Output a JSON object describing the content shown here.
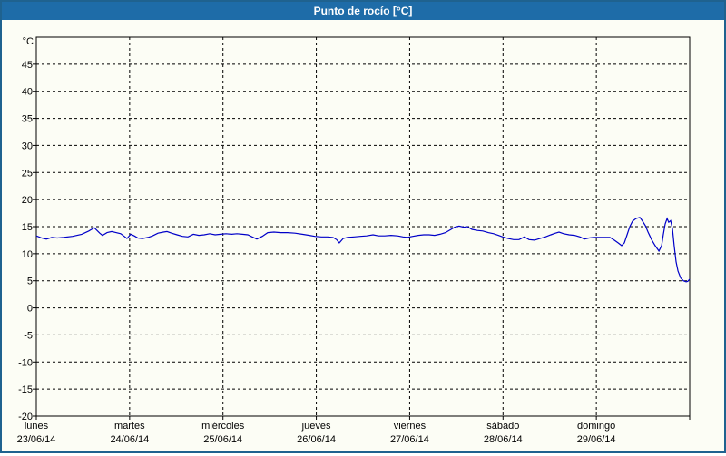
{
  "header": {
    "title": "Punto de rocío [°C]"
  },
  "colors": {
    "title_bar_bg": "#1E6CA8",
    "title_text": "#FFFFFF",
    "frame_border": "#1F628F",
    "page_bg": "#FCFDF5",
    "grid": "#000000",
    "series": "#0000C8"
  },
  "chart_data": {
    "type": "line",
    "title": "Punto de rocío [°C]",
    "xlabel": "",
    "ylabel": "°C",
    "y_unit_label": "°C",
    "ylim": [
      -20,
      50
    ],
    "y_ticks": [
      45,
      40,
      35,
      30,
      25,
      20,
      15,
      10,
      5,
      0,
      -5,
      -10,
      -15,
      -20
    ],
    "grid": "dashed",
    "legend_position": "none",
    "x_total_hours": 168,
    "x_days": [
      {
        "name": "lunes",
        "date": "23/06/14"
      },
      {
        "name": "martes",
        "date": "24/06/14"
      },
      {
        "name": "miércoles",
        "date": "25/06/14"
      },
      {
        "name": "jueves",
        "date": "26/06/14"
      },
      {
        "name": "viernes",
        "date": "27/06/14"
      },
      {
        "name": "sábado",
        "date": "28/06/14"
      },
      {
        "name": "domingo",
        "date": "29/06/14"
      }
    ],
    "series": [
      {
        "name": "Punto de rocío",
        "unit": "°C",
        "points": [
          [
            0,
            13.3
          ],
          [
            1.4,
            12.9
          ],
          [
            2.6,
            12.7
          ],
          [
            4,
            13
          ],
          [
            5.4,
            12.9
          ],
          [
            7,
            13
          ],
          [
            9.3,
            13.2
          ],
          [
            11.7,
            13.6
          ],
          [
            13.5,
            14.2
          ],
          [
            14.9,
            14.8
          ],
          [
            16.3,
            13.8
          ],
          [
            17,
            13.4
          ],
          [
            18.2,
            13.9
          ],
          [
            19.4,
            14.1
          ],
          [
            20.5,
            13.9
          ],
          [
            21.7,
            13.7
          ],
          [
            22.6,
            13.2
          ],
          [
            23.3,
            12.8
          ],
          [
            24.3,
            13.6
          ],
          [
            25.2,
            13.3
          ],
          [
            26.1,
            12.9
          ],
          [
            27.3,
            12.8
          ],
          [
            28.7,
            13
          ],
          [
            29.9,
            13.3
          ],
          [
            31.3,
            13.8
          ],
          [
            32.7,
            14
          ],
          [
            33.6,
            14.1
          ],
          [
            34.8,
            13.8
          ],
          [
            36.2,
            13.5
          ],
          [
            37.6,
            13.2
          ],
          [
            39,
            13.1
          ],
          [
            40.4,
            13.6
          ],
          [
            41.8,
            13.4
          ],
          [
            43.2,
            13.5
          ],
          [
            44.6,
            13.7
          ],
          [
            46,
            13.5
          ],
          [
            47.4,
            13.6
          ],
          [
            48.8,
            13.7
          ],
          [
            50.2,
            13.6
          ],
          [
            51.6,
            13.7
          ],
          [
            53,
            13.6
          ],
          [
            54.4,
            13.5
          ],
          [
            55.5,
            13.1
          ],
          [
            56.7,
            12.7
          ],
          [
            58.1,
            13.2
          ],
          [
            59.5,
            13.9
          ],
          [
            61.1,
            14
          ],
          [
            62.8,
            13.9
          ],
          [
            64.6,
            13.9
          ],
          [
            66.5,
            13.8
          ],
          [
            68.4,
            13.6
          ],
          [
            70.2,
            13.4
          ],
          [
            71.6,
            13.2
          ],
          [
            73.3,
            13.1
          ],
          [
            74.9,
            13.1
          ],
          [
            76.3,
            13
          ],
          [
            77.2,
            12.6
          ],
          [
            77.9,
            12
          ],
          [
            78.9,
            12.8
          ],
          [
            80,
            13
          ],
          [
            81.7,
            13.1
          ],
          [
            83.3,
            13.2
          ],
          [
            84.9,
            13.3
          ],
          [
            86.6,
            13.5
          ],
          [
            88,
            13.3
          ],
          [
            89.6,
            13.3
          ],
          [
            91.2,
            13.4
          ],
          [
            92.9,
            13.3
          ],
          [
            94.3,
            13.1
          ],
          [
            95.4,
            13
          ],
          [
            96.8,
            13.2
          ],
          [
            98.2,
            13.4
          ],
          [
            99.6,
            13.5
          ],
          [
            101,
            13.5
          ],
          [
            102.4,
            13.4
          ],
          [
            103.8,
            13.6
          ],
          [
            105.2,
            13.9
          ],
          [
            106.4,
            14.4
          ],
          [
            107.6,
            14.9
          ],
          [
            108.7,
            15.1
          ],
          [
            109.9,
            14.9
          ],
          [
            110.8,
            15
          ],
          [
            112,
            14.5
          ],
          [
            113.4,
            14.3
          ],
          [
            114.8,
            14.2
          ],
          [
            116.2,
            13.9
          ],
          [
            117.6,
            13.7
          ],
          [
            118.8,
            13.4
          ],
          [
            119.9,
            13.1
          ],
          [
            121.3,
            12.8
          ],
          [
            122.7,
            12.6
          ],
          [
            124.1,
            12.6
          ],
          [
            125.5,
            13.1
          ],
          [
            126.7,
            12.6
          ],
          [
            128.1,
            12.5
          ],
          [
            129.5,
            12.8
          ],
          [
            130.9,
            13.1
          ],
          [
            132.3,
            13.5
          ],
          [
            133.5,
            13.8
          ],
          [
            134.4,
            14
          ],
          [
            135.6,
            13.7
          ],
          [
            137,
            13.5
          ],
          [
            138.4,
            13.4
          ],
          [
            139.8,
            13.1
          ],
          [
            140.9,
            12.7
          ],
          [
            142.1,
            12.9
          ],
          [
            143.3,
            13
          ],
          [
            144.7,
            13
          ],
          [
            146.1,
            13
          ],
          [
            147.5,
            13
          ],
          [
            148.6,
            12.5
          ],
          [
            149.6,
            12
          ],
          [
            150.5,
            11.5
          ],
          [
            151.2,
            12
          ],
          [
            151.9,
            13.5
          ],
          [
            152.6,
            15
          ],
          [
            153.3,
            16
          ],
          [
            154.2,
            16.5
          ],
          [
            155.2,
            16.7
          ],
          [
            155.9,
            16
          ],
          [
            156.6,
            15.2
          ],
          [
            157.3,
            14
          ],
          [
            158.2,
            12.6
          ],
          [
            159.1,
            11.5
          ],
          [
            160.1,
            10.5
          ],
          [
            160.8,
            11.5
          ],
          [
            161.2,
            13.5
          ],
          [
            161.7,
            15.5
          ],
          [
            162.2,
            16.5
          ],
          [
            162.6,
            15.8
          ],
          [
            163.1,
            16.1
          ],
          [
            163.6,
            14.5
          ],
          [
            164,
            11.5
          ],
          [
            164.5,
            8.5
          ],
          [
            165,
            6.8
          ],
          [
            165.7,
            5.5
          ],
          [
            166.4,
            5
          ],
          [
            167.1,
            4.8
          ],
          [
            167.5,
            4.9
          ],
          [
            168,
            5.3
          ]
        ]
      }
    ]
  }
}
